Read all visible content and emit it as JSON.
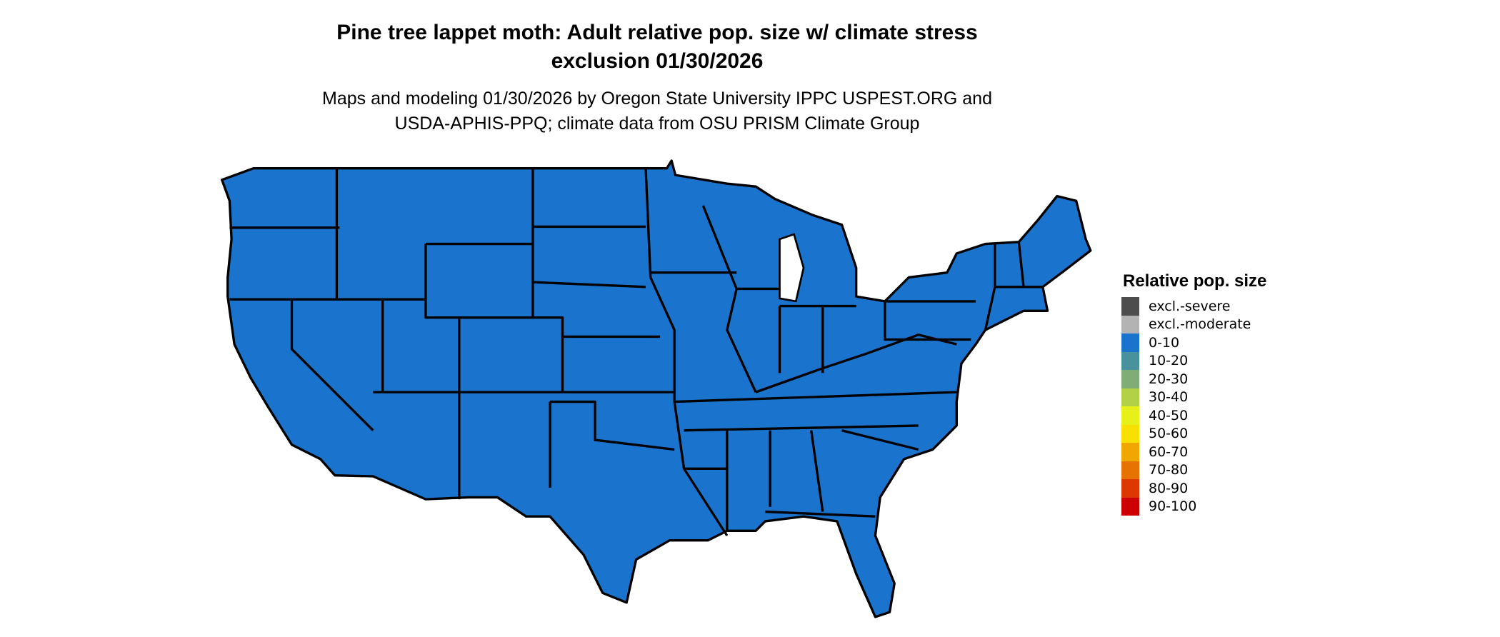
{
  "title": {
    "line1": "Pine tree lappet moth: Adult relative pop. size w/ climate stress",
    "line2": "exclusion 01/30/2026"
  },
  "subtitle": {
    "line1": "Maps and modeling 01/30/2026 by Oregon State University IPPC USPEST.ORG and",
    "line2": "USDA-APHIS-PPQ; climate data from OSU PRISM Climate Group"
  },
  "map": {
    "region": "Contiguous United States",
    "fill_class": "0-10",
    "fill_color": "#1a74cd",
    "border_color": "#000000"
  },
  "legend": {
    "title": "Relative pop. size",
    "items": [
      {
        "label": "excl.-severe",
        "color": "#4d4d4d"
      },
      {
        "label": "excl.-moderate",
        "color": "#b3b3b3"
      },
      {
        "label": "0-10",
        "color": "#1a74cd"
      },
      {
        "label": "10-20",
        "color": "#4a919e"
      },
      {
        "label": "20-30",
        "color": "#7ead75"
      },
      {
        "label": "30-40",
        "color": "#b3d147"
      },
      {
        "label": "40-50",
        "color": "#e6f019"
      },
      {
        "label": "50-60",
        "color": "#f8e000"
      },
      {
        "label": "60-70",
        "color": "#f0a800"
      },
      {
        "label": "70-80",
        "color": "#e67200"
      },
      {
        "label": "80-90",
        "color": "#dc3800"
      },
      {
        "label": "90-100",
        "color": "#cc0000"
      }
    ]
  }
}
